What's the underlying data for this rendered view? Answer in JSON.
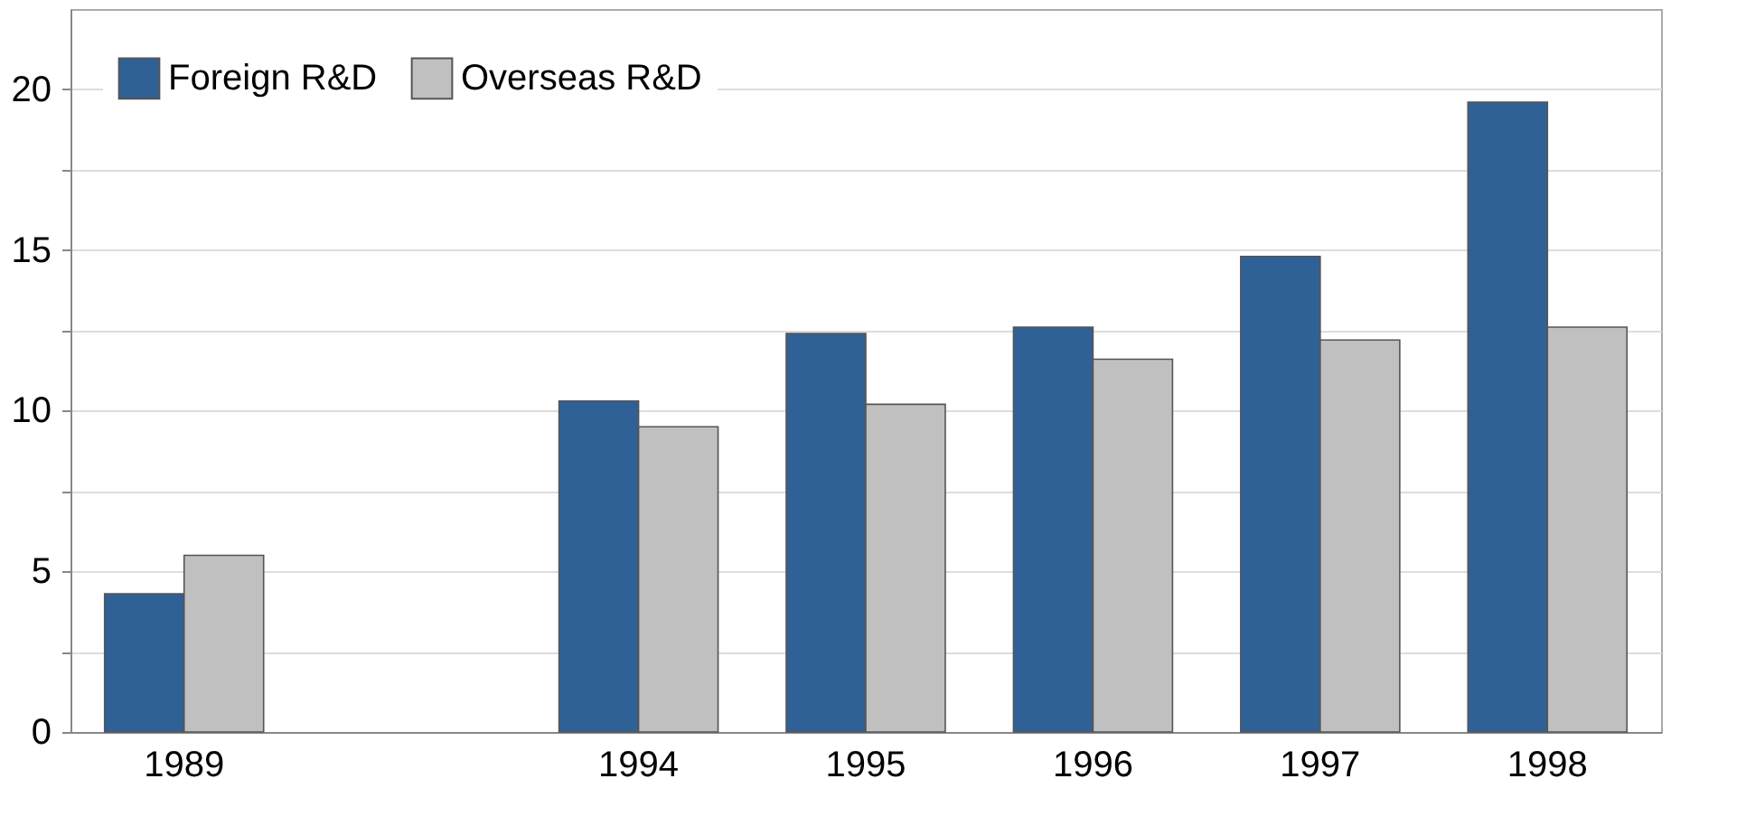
{
  "chart_data": {
    "type": "bar",
    "categories": [
      "1989",
      null,
      "1994",
      "1995",
      "1996",
      "1997",
      "1998"
    ],
    "series": [
      {
        "name": "Foreign R&D",
        "color": "#2f6196",
        "values": [
          4.3,
          null,
          10.3,
          12.4,
          12.6,
          14.8,
          19.6
        ]
      },
      {
        "name": "Overseas R&D",
        "color": "#c0c0c0",
        "values": [
          5.5,
          null,
          9.5,
          10.2,
          11.6,
          12.2,
          12.6
        ]
      }
    ],
    "ylim": [
      0,
      22.5
    ],
    "yticks": [
      0,
      {
        "value": 2.5,
        "label": null
      },
      5,
      {
        "value": 7.5,
        "label": null
      },
      10,
      {
        "value": 12.5,
        "label": null
      },
      15,
      {
        "value": 17.5,
        "label": null
      },
      20
    ],
    "grid": "y",
    "legend": "top left"
  }
}
